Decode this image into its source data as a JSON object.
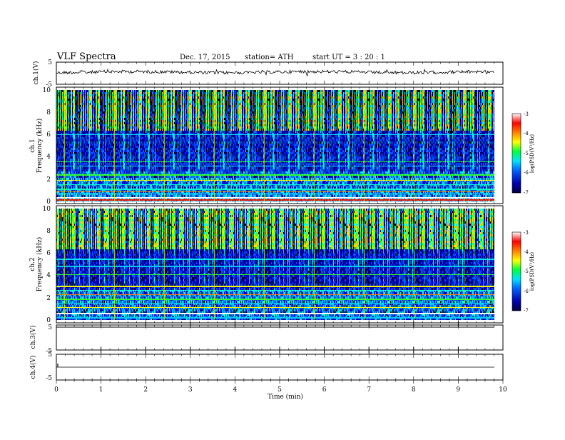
{
  "header": {
    "title": "VLF  Spectra",
    "date": "Dec. 17, 2015",
    "station": "station= ATH",
    "start_ut": "start  UT  =   3  : 20 : 1"
  },
  "chart_data": [
    {
      "type": "line",
      "panel": "ch1-waveform",
      "ylabel": "ch.1(V)",
      "ylim": [
        -5,
        5
      ],
      "yticks": [
        "5",
        "-5"
      ],
      "x_range_min": [
        0,
        9.8
      ],
      "mean_level": 0
    },
    {
      "type": "heatmap",
      "panel": "ch1-spectrogram",
      "ylabel_line1": "ch.1",
      "ylabel_line2": "Frequency  (kHz)",
      "ylim": [
        0,
        10
      ],
      "yticks": [
        "0",
        "2",
        "4",
        "6",
        "8",
        "10"
      ],
      "colorbar": {
        "label": "log(PSD(V²/Hz)",
        "range": [
          -7,
          -3
        ],
        "ticks": [
          "-3",
          "-4",
          "-5",
          "-6",
          "-7"
        ]
      }
    },
    {
      "type": "heatmap",
      "panel": "ch2-spectrogram",
      "ylabel_line1": "ch.2",
      "ylabel_line2": "Frequency  (kHz)",
      "ylim": [
        0,
        10
      ],
      "yticks": [
        "0",
        "2",
        "4",
        "6",
        "8",
        "10"
      ],
      "colorbar": {
        "label": "log(PSD(V²/Hz)",
        "range": [
          -7,
          -3
        ],
        "ticks": [
          "-3",
          "-4",
          "-5",
          "-6",
          "-7"
        ]
      }
    },
    {
      "type": "line",
      "panel": "ch3-waveform",
      "ylabel": "ch.3(V)",
      "ylim": [
        -5,
        5
      ],
      "yticks": [
        "5",
        "-5"
      ],
      "mean_level": 5
    },
    {
      "type": "line",
      "panel": "ch4-waveform",
      "ylabel": "ch.4(V)",
      "ylim": [
        -5,
        5
      ],
      "yticks": [
        "5",
        "-5"
      ],
      "mean_level": 0
    }
  ],
  "xaxis": {
    "label": "Time  (min)",
    "ticks": [
      "0",
      "1",
      "2",
      "3",
      "4",
      "5",
      "6",
      "7",
      "8",
      "9",
      "10"
    ],
    "range": [
      0,
      10
    ]
  },
  "colors": {
    "trace": "#000000",
    "colormap": [
      "#000000",
      "#000080",
      "#0000ff",
      "#00ffff",
      "#00ff00",
      "#ffff00",
      "#ff0000",
      "#ffffff"
    ]
  }
}
